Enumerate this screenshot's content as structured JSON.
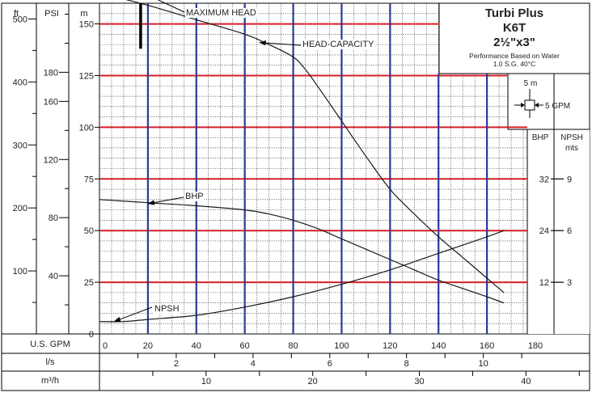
{
  "chart_data": {
    "type": "line",
    "title": "Turbi Plus",
    "model": "K6T",
    "size": "2½\"x3\"",
    "subtitle_line1": "Performance Based on Water",
    "subtitle_line2": "1.0 S.G.  40°C",
    "grid_legend": {
      "vertical": "5 m",
      "horizontal": "5 GPM"
    },
    "x_unit_main": "U.S. GPM",
    "x_unit_ls": "l/s",
    "x_unit_m3h": "m³/h",
    "x_ticks_gpm": [
      0,
      20,
      40,
      60,
      80,
      100,
      120,
      140,
      160,
      180
    ],
    "x_ticks_ls": [
      2,
      4,
      6,
      8,
      10
    ],
    "x_ticks_m3h": [
      10,
      20,
      30,
      40
    ],
    "y_unit_m": "m",
    "y_unit_psi": "PSI",
    "y_unit_ft": "ft",
    "y_ticks_m": [
      0,
      25,
      50,
      75,
      100,
      125,
      150
    ],
    "y_ticks_psi": [
      40,
      80,
      120,
      160,
      180
    ],
    "y_ticks_ft": [
      100,
      200,
      300,
      400,
      500
    ],
    "right_unit_bhp": "BHP",
    "right_unit_npsh": "NPSH",
    "right_unit_mts": "mts",
    "right_ticks_bhp": [
      12,
      24,
      32
    ],
    "right_ticks_npsh": [
      3,
      6,
      9
    ],
    "xlim": [
      0,
      180
    ],
    "ylim": [
      0,
      160
    ],
    "series": [
      {
        "name": "HEAD-CAPACITY",
        "x": [
          0,
          20,
          40,
          60,
          70,
          80,
          85,
          90,
          100,
          110,
          120,
          130,
          140,
          150,
          160,
          167
        ],
        "y": [
          165,
          159,
          152,
          145,
          140,
          134,
          128,
          120,
          103,
          86,
          70,
          58,
          47,
          37,
          27,
          20
        ]
      },
      {
        "name": "BHP",
        "x": [
          0,
          20,
          40,
          60,
          70,
          80,
          90,
          100,
          110,
          120,
          130,
          140,
          150,
          160,
          167
        ],
        "y": [
          65,
          63.5,
          62,
          60,
          58,
          55,
          51,
          46,
          41,
          36,
          31,
          26,
          22,
          18,
          15
        ]
      },
      {
        "name": "NPSH",
        "x": [
          0,
          10,
          20,
          40,
          60,
          80,
          100,
          120,
          140,
          160,
          167
        ],
        "y": [
          6,
          6,
          7,
          9,
          13,
          18,
          24,
          31,
          39,
          47,
          50
        ]
      }
    ],
    "annotations": [
      {
        "label": "MAXIMUM HEAD",
        "x": 18,
        "y": 165
      },
      {
        "label": "HEAD-CAPACITY",
        "x": 66,
        "y": 141
      },
      {
        "label": "BHP",
        "x": 20,
        "y": 63
      },
      {
        "label": "NPSH",
        "x": 6,
        "y": 6
      }
    ],
    "max_head_bar": {
      "x": 17,
      "y_top": 160,
      "y_bottom": 138
    },
    "grid": true
  }
}
